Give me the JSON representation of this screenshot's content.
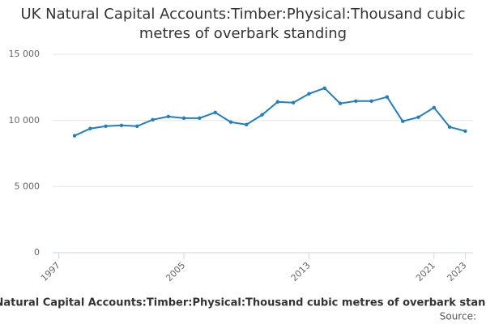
{
  "chart_data": {
    "type": "line",
    "title": "UK Natural Capital Accounts:Timber:Physical:Thousand cubic metres of overbark standing",
    "x_label": "UK Natural Capital Accounts:Timber:Physical:Thousand cubic metres of overbark standing",
    "source": "Source:",
    "x": [
      1998,
      1999,
      2000,
      2001,
      2002,
      2003,
      2004,
      2005,
      2006,
      2007,
      2008,
      2009,
      2010,
      2011,
      2012,
      2013,
      2014,
      2015,
      2016,
      2017,
      2018,
      2019,
      2020,
      2021,
      2022,
      2023
    ],
    "series": [
      {
        "name": "UK Natural Capital Accounts:Timber:Physical:Thousand cubic metres of overbark standing",
        "color": "#1f7fc1",
        "values": [
          8850,
          9390,
          9570,
          9630,
          9570,
          10060,
          10300,
          10180,
          10180,
          10610,
          9880,
          9690,
          10430,
          11410,
          11350,
          12020,
          12450,
          11290,
          11470,
          11470,
          11780,
          9940,
          10250,
          10980,
          9510,
          9200
        ]
      }
    ],
    "xlim": [
      1996.6,
      2023.5
    ],
    "xticks": [
      1997,
      2005,
      2013,
      2021,
      2023
    ],
    "ylim": [
      0,
      15500
    ],
    "yticks": [
      {
        "value": 0,
        "label": "0"
      },
      {
        "value": 5000,
        "label": "5 000"
      },
      {
        "value": 10000,
        "label": "10 000"
      },
      {
        "value": 15000,
        "label": "15 000"
      }
    ],
    "grid": true
  }
}
